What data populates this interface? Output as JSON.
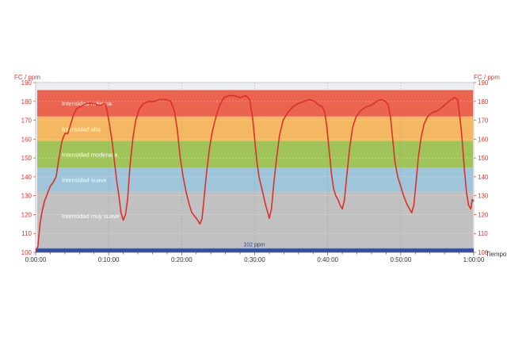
{
  "chart_data": {
    "type": "line",
    "ylabel": "FC / ppm",
    "xlabel": "Tiempo",
    "ylim": [
      100,
      190
    ],
    "yticks": [
      100,
      110,
      120,
      130,
      140,
      150,
      160,
      170,
      180,
      190
    ],
    "xlim_minutes": [
      0,
      60
    ],
    "xticks": [
      {
        "minutes": 0,
        "label": "0:00:00"
      },
      {
        "minutes": 10,
        "label": "0:10:00"
      },
      {
        "minutes": 20,
        "label": "0:20:00"
      },
      {
        "minutes": 30,
        "label": "0:30:00"
      },
      {
        "minutes": 40,
        "label": "0:40:00"
      },
      {
        "minutes": 50,
        "label": "0:50:00"
      },
      {
        "minutes": 60,
        "label": "1:00:00"
      }
    ],
    "grid": true,
    "zones": [
      {
        "label": "Intensidad muy suave",
        "from": 100,
        "to": 132,
        "color": "#c2c1c1"
      },
      {
        "label": "Intensidad suave",
        "from": 132,
        "to": 145,
        "color": "#9fc5da"
      },
      {
        "label": "Intensidad moderada",
        "from": 145,
        "to": 159,
        "color": "#a0c45a"
      },
      {
        "label": "Intensidad alta",
        "from": 159,
        "to": 172,
        "color": "#f4b863"
      },
      {
        "label": "Intensidad máxima",
        "from": 172,
        "to": 186,
        "color": "#ea6450"
      }
    ],
    "baseline": {
      "value": 102,
      "label": "102 ppm",
      "color": "#2e4fa8"
    },
    "series": [
      {
        "color": "#d9312c",
        "points": [
          [
            0.0,
            101
          ],
          [
            0.3,
            103
          ],
          [
            0.6,
            115
          ],
          [
            0.9,
            122
          ],
          [
            1.2,
            127
          ],
          [
            1.6,
            131
          ],
          [
            2.0,
            135
          ],
          [
            2.4,
            137
          ],
          [
            2.8,
            140
          ],
          [
            3.2,
            150
          ],
          [
            3.6,
            159
          ],
          [
            4.0,
            163
          ],
          [
            4.4,
            163
          ],
          [
            4.8,
            168
          ],
          [
            5.2,
            173
          ],
          [
            5.6,
            176
          ],
          [
            6.0,
            177
          ],
          [
            6.5,
            178
          ],
          [
            7.0,
            179
          ],
          [
            7.5,
            179
          ],
          [
            8.0,
            179
          ],
          [
            8.5,
            178
          ],
          [
            9.0,
            178
          ],
          [
            9.5,
            179
          ],
          [
            9.8,
            175
          ],
          [
            10.1,
            168
          ],
          [
            10.5,
            158
          ],
          [
            10.8,
            148
          ],
          [
            11.1,
            138
          ],
          [
            11.4,
            130
          ],
          [
            11.7,
            121
          ],
          [
            12.0,
            117
          ],
          [
            12.3,
            120
          ],
          [
            12.6,
            128
          ],
          [
            12.9,
            145
          ],
          [
            13.3,
            160
          ],
          [
            13.7,
            170
          ],
          [
            14.2,
            176
          ],
          [
            14.8,
            179
          ],
          [
            15.5,
            180
          ],
          [
            16.2,
            180
          ],
          [
            17.0,
            181
          ],
          [
            17.8,
            181
          ],
          [
            18.5,
            180
          ],
          [
            19.0,
            175
          ],
          [
            19.4,
            165
          ],
          [
            19.8,
            150
          ],
          [
            20.2,
            140
          ],
          [
            20.6,
            132
          ],
          [
            21.0,
            126
          ],
          [
            21.4,
            121
          ],
          [
            21.8,
            119
          ],
          [
            22.2,
            117
          ],
          [
            22.5,
            115
          ],
          [
            22.8,
            118
          ],
          [
            23.1,
            130
          ],
          [
            23.4,
            142
          ],
          [
            23.8,
            155
          ],
          [
            24.2,
            164
          ],
          [
            24.7,
            172
          ],
          [
            25.2,
            178
          ],
          [
            25.8,
            182
          ],
          [
            26.5,
            183
          ],
          [
            27.2,
            183
          ],
          [
            28.0,
            182
          ],
          [
            28.8,
            183
          ],
          [
            29.3,
            181
          ],
          [
            29.7,
            172
          ],
          [
            30.0,
            160
          ],
          [
            30.3,
            148
          ],
          [
            30.6,
            140
          ],
          [
            30.9,
            135
          ],
          [
            31.2,
            130
          ],
          [
            31.5,
            125
          ],
          [
            31.8,
            121
          ],
          [
            32.0,
            118
          ],
          [
            32.3,
            123
          ],
          [
            32.6,
            136
          ],
          [
            33.0,
            150
          ],
          [
            33.4,
            162
          ],
          [
            33.9,
            170
          ],
          [
            34.5,
            174
          ],
          [
            35.2,
            177
          ],
          [
            36.0,
            179
          ],
          [
            36.8,
            180
          ],
          [
            37.5,
            181
          ],
          [
            38.2,
            180
          ],
          [
            38.8,
            178
          ],
          [
            39.3,
            177
          ],
          [
            39.6,
            174
          ],
          [
            39.9,
            166
          ],
          [
            40.2,
            154
          ],
          [
            40.5,
            142
          ],
          [
            40.8,
            134
          ],
          [
            41.1,
            130
          ],
          [
            41.4,
            128
          ],
          [
            41.7,
            125
          ],
          [
            42.0,
            123
          ],
          [
            42.3,
            128
          ],
          [
            42.6,
            140
          ],
          [
            43.0,
            155
          ],
          [
            43.4,
            166
          ],
          [
            43.9,
            172
          ],
          [
            44.5,
            175
          ],
          [
            45.2,
            177
          ],
          [
            46.0,
            178
          ],
          [
            46.7,
            180
          ],
          [
            47.3,
            181
          ],
          [
            47.9,
            180
          ],
          [
            48.3,
            178
          ],
          [
            48.6,
            172
          ],
          [
            48.9,
            160
          ],
          [
            49.2,
            148
          ],
          [
            49.6,
            140
          ],
          [
            50.0,
            135
          ],
          [
            50.4,
            130
          ],
          [
            50.8,
            126
          ],
          [
            51.2,
            123
          ],
          [
            51.5,
            121
          ],
          [
            51.8,
            125
          ],
          [
            52.1,
            137
          ],
          [
            52.4,
            150
          ],
          [
            52.8,
            161
          ],
          [
            53.2,
            168
          ],
          [
            53.7,
            172
          ],
          [
            54.3,
            174
          ],
          [
            55.0,
            175
          ],
          [
            55.7,
            177
          ],
          [
            56.3,
            179
          ],
          [
            56.9,
            181
          ],
          [
            57.4,
            182
          ],
          [
            57.8,
            181
          ],
          [
            58.1,
            172
          ],
          [
            58.4,
            160
          ],
          [
            58.7,
            145
          ],
          [
            59.0,
            132
          ],
          [
            59.3,
            125
          ],
          [
            59.6,
            123
          ],
          [
            59.8,
            128
          ],
          [
            60.0,
            127
          ]
        ]
      }
    ]
  }
}
